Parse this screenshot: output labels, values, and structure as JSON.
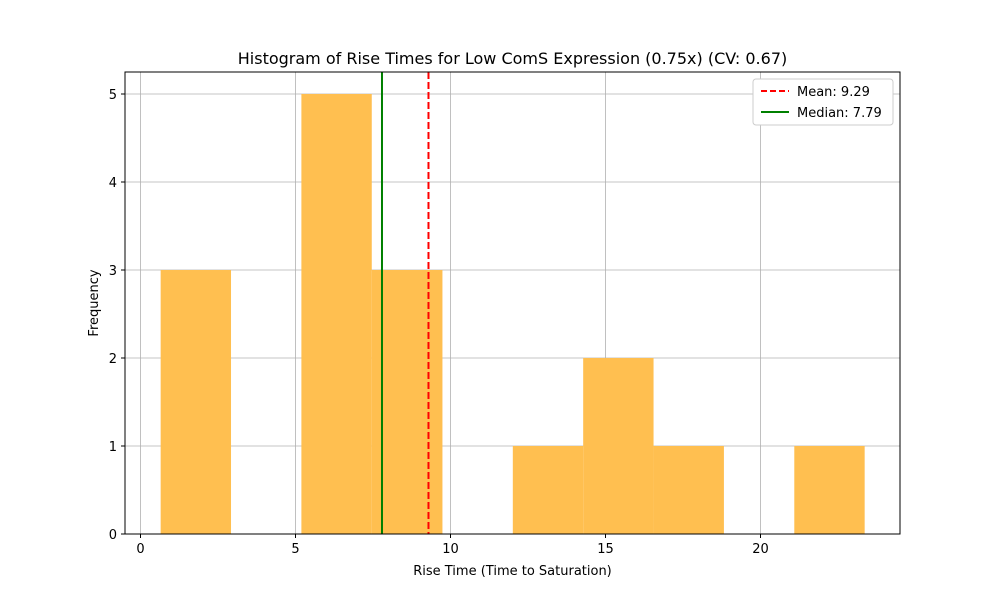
{
  "chart_data": {
    "type": "bar",
    "title": "Histogram of Rise Times for Low ComS Expression (0.75x) (CV: 0.67)",
    "xlabel": "Rise Time (Time to Saturation)",
    "ylabel": "Frequency",
    "xlim": [
      -0.5,
      24.5
    ],
    "ylim": [
      0,
      5.25
    ],
    "xticks": [
      0,
      5,
      10,
      15,
      20
    ],
    "yticks": [
      0,
      1,
      2,
      3,
      4,
      5
    ],
    "grid": true,
    "bar_color": "#FFBF50",
    "bins": [
      {
        "x0": 0.65,
        "x1": 2.92,
        "count": 3
      },
      {
        "x0": 2.92,
        "x1": 5.19,
        "count": 0
      },
      {
        "x0": 5.19,
        "x1": 7.46,
        "count": 5
      },
      {
        "x0": 7.46,
        "x1": 9.74,
        "count": 3
      },
      {
        "x0": 9.74,
        "x1": 12.01,
        "count": 0
      },
      {
        "x0": 12.01,
        "x1": 14.28,
        "count": 1
      },
      {
        "x0": 14.28,
        "x1": 16.55,
        "count": 2
      },
      {
        "x0": 16.55,
        "x1": 18.82,
        "count": 1
      },
      {
        "x0": 18.82,
        "x1": 21.09,
        "count": 0
      },
      {
        "x0": 21.09,
        "x1": 23.36,
        "count": 1
      }
    ],
    "lines": [
      {
        "label": "Mean: 9.29",
        "x": 9.29,
        "color": "#FF0000",
        "style": "dashed"
      },
      {
        "label": "Median: 7.79",
        "x": 7.79,
        "color": "#008000",
        "style": "solid"
      }
    ],
    "legend_position": "top-right"
  }
}
